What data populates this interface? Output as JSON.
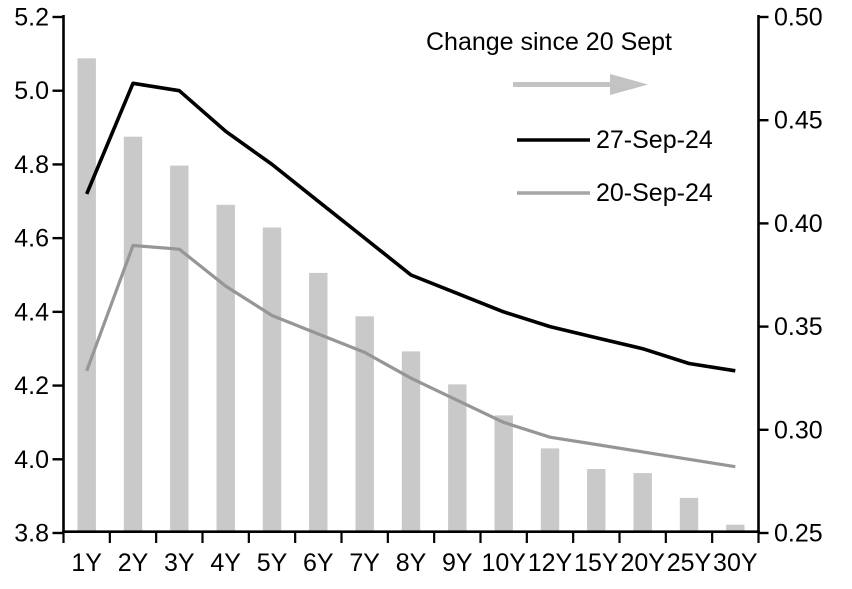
{
  "chart_data": {
    "type": "bar",
    "subtype": "bar-line-combo",
    "title": "",
    "categories": [
      "1Y",
      "2Y",
      "3Y",
      "4Y",
      "5Y",
      "6Y",
      "7Y",
      "8Y",
      "9Y",
      "10Y",
      "12Y",
      "15Y",
      "20Y",
      "25Y",
      "30Y"
    ],
    "series": [
      {
        "name": "Change since 20 Sept",
        "type": "bar",
        "axis": "right",
        "color": "#c9c9c9",
        "values": [
          0.48,
          0.442,
          0.428,
          0.409,
          0.398,
          0.376,
          0.355,
          0.338,
          0.322,
          0.307,
          0.291,
          0.281,
          0.279,
          0.267,
          0.254
        ]
      },
      {
        "name": "27-Sep-24",
        "type": "line",
        "axis": "left",
        "color": "#000000",
        "values": [
          4.72,
          5.02,
          5.0,
          4.89,
          4.8,
          4.7,
          4.6,
          4.5,
          4.45,
          4.4,
          4.36,
          4.33,
          4.3,
          4.26,
          4.24
        ]
      },
      {
        "name": "20-Sep-24",
        "type": "line",
        "axis": "left",
        "color": "#969696",
        "values": [
          4.24,
          4.58,
          4.57,
          4.47,
          4.39,
          4.34,
          4.29,
          4.22,
          4.16,
          4.1,
          4.06,
          4.04,
          4.02,
          4.0,
          3.98
        ]
      }
    ],
    "left_axis": {
      "min": 3.8,
      "max": 5.2,
      "tick_step": 0.2,
      "tick_labels": [
        "5.2",
        "5.0",
        "4.8",
        "4.6",
        "4.4",
        "4.2",
        "4.0",
        "3.8"
      ],
      "tick_values": [
        5.2,
        5.0,
        4.8,
        4.6,
        4.4,
        4.2,
        4.0,
        3.8
      ]
    },
    "right_axis": {
      "min": 0.25,
      "max": 0.5,
      "tick_step": 0.05,
      "tick_labels": [
        "0.50",
        "0.45",
        "0.40",
        "0.35",
        "0.30",
        "0.25"
      ],
      "tick_values": [
        0.5,
        0.45,
        0.4,
        0.35,
        0.3,
        0.25
      ]
    },
    "grid": false,
    "legend_position": "top-right-inside",
    "legend": {
      "bar_label": "Change since 20 Sept",
      "arrow_color": "#c3c3c3",
      "line1_label": "27-Sep-24",
      "line1_color": "#000000",
      "line2_label": "20-Sep-24",
      "line2_color": "#a6a6a6"
    },
    "colors": {
      "axis": "#000000",
      "bar": "#c9c9c9",
      "line_black": "#000000",
      "line_gray": "#969696"
    }
  }
}
